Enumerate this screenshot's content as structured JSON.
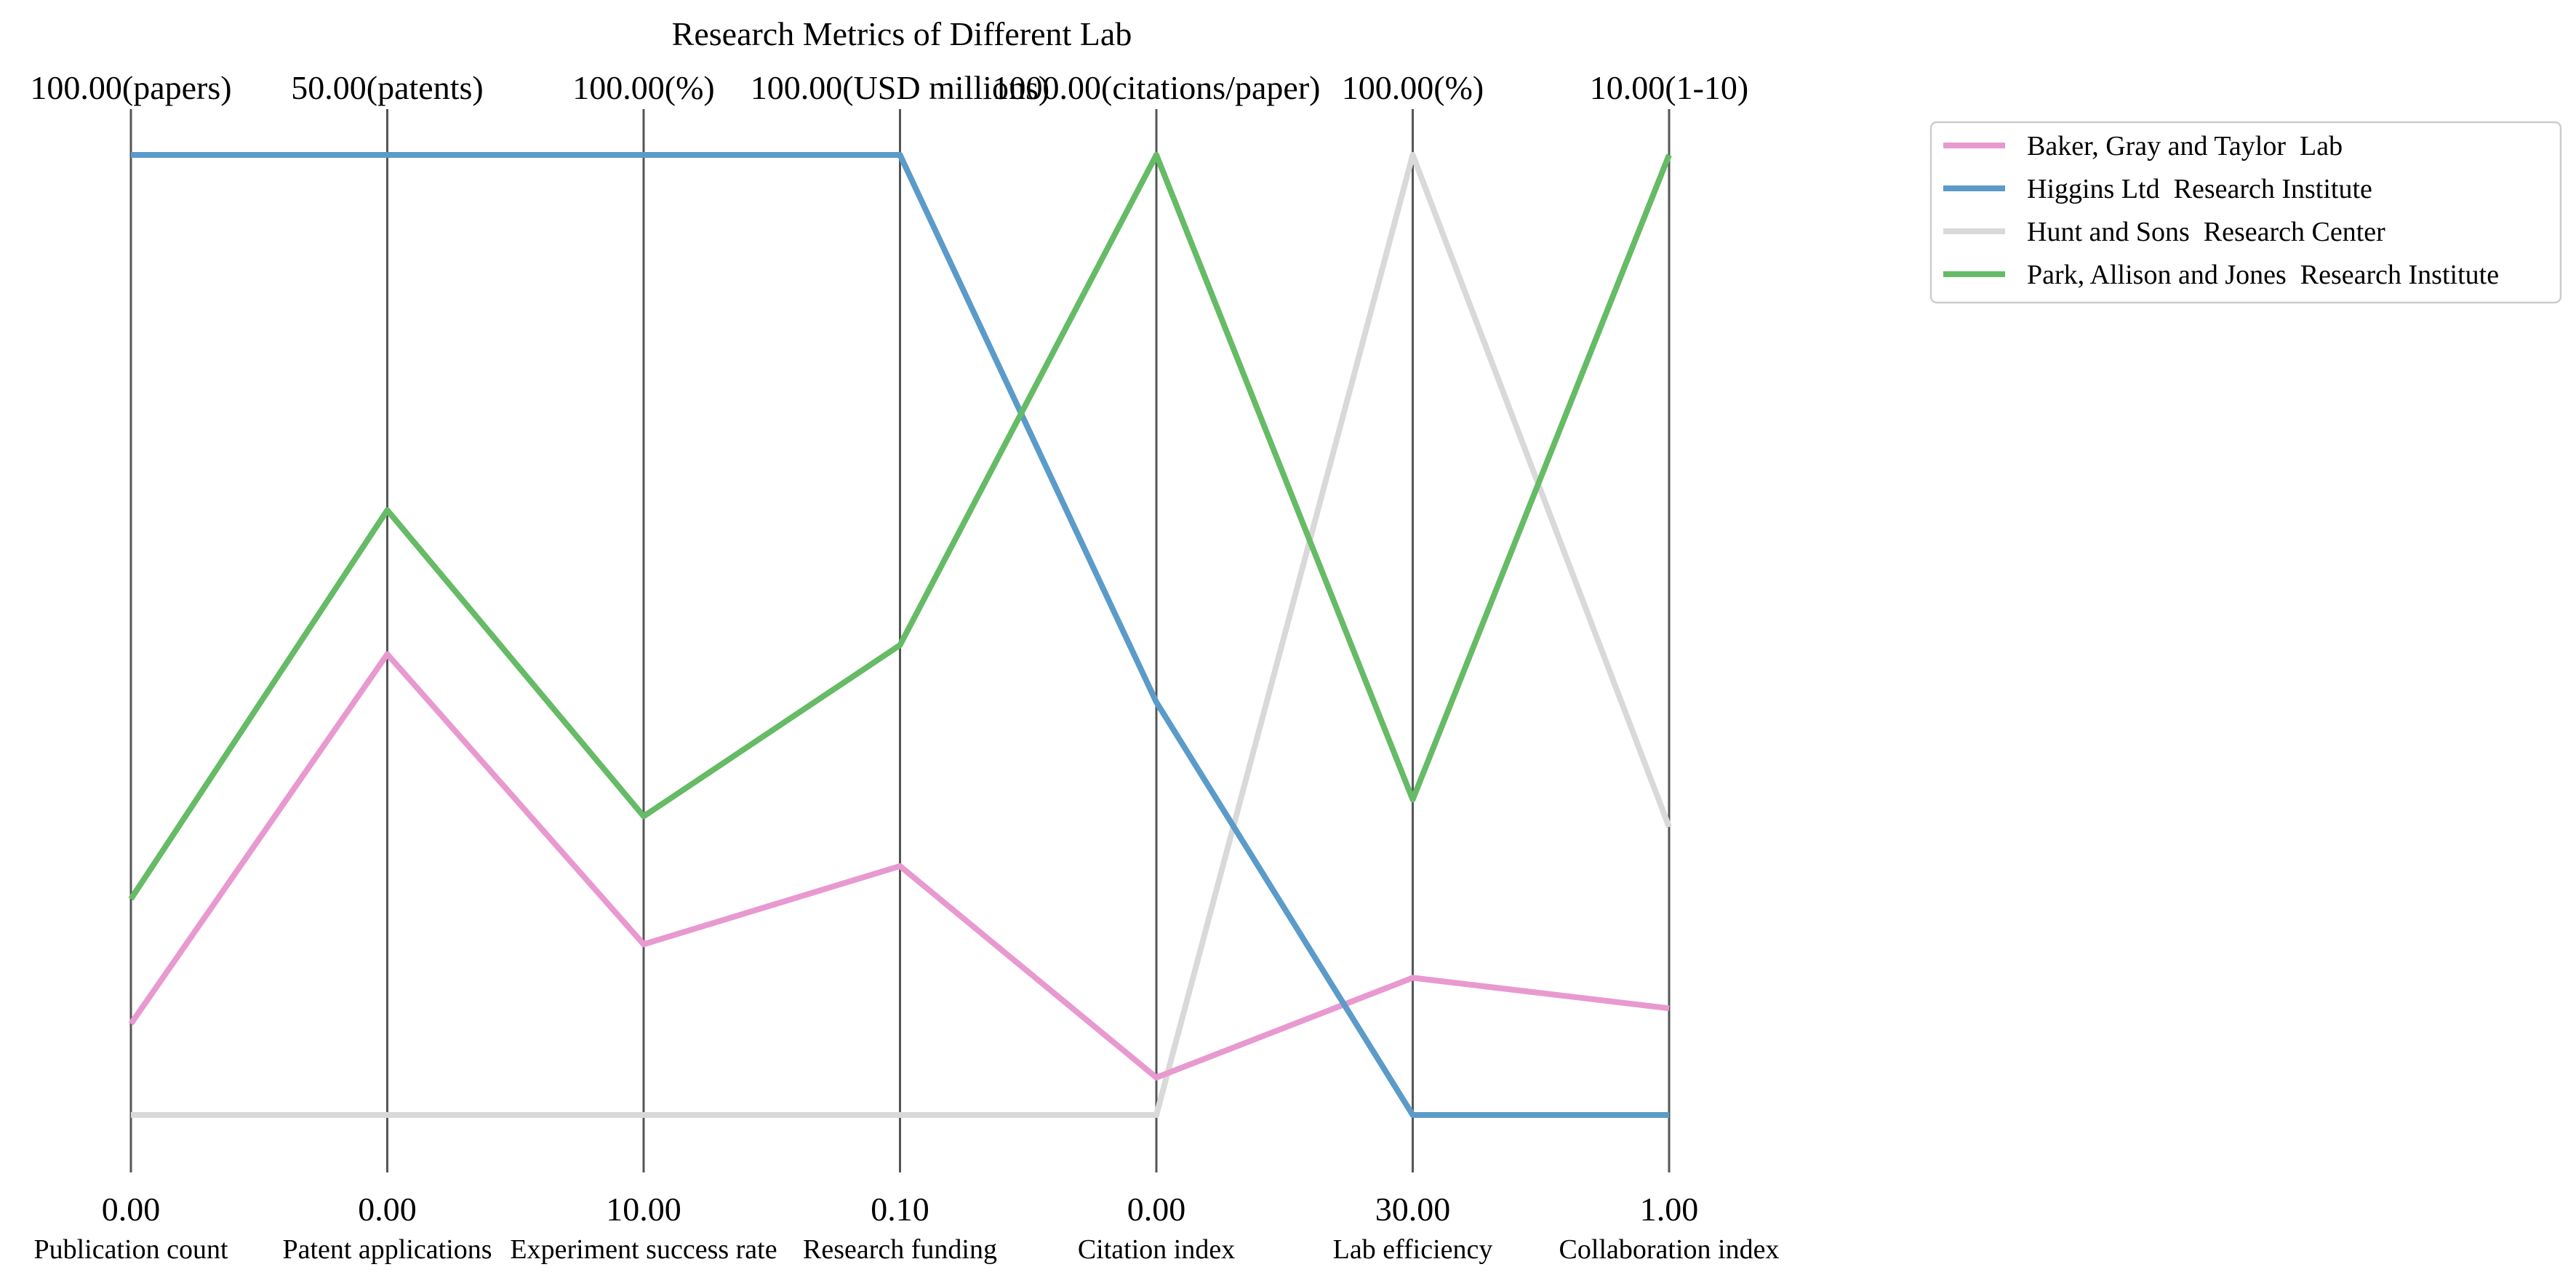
{
  "chart_data": {
    "type": "parallel-coordinates",
    "title": "Research Metrics of Different Lab",
    "axes": [
      {
        "label": "Publication count",
        "min": 0,
        "max": 100,
        "min_label": "0.00",
        "max_label": "100.00(papers)"
      },
      {
        "label": "Patent applications",
        "min": 0,
        "max": 50,
        "min_label": "0.00",
        "max_label": "50.00(patents)"
      },
      {
        "label": "Experiment success rate",
        "min": 10,
        "max": 100,
        "min_label": "10.00",
        "max_label": "100.00(%)"
      },
      {
        "label": "Research funding",
        "min": 0.1,
        "max": 100,
        "min_label": "0.10",
        "max_label": "100.00(USD millions)"
      },
      {
        "label": "Citation index",
        "min": 0,
        "max": 1000,
        "min_label": "0.00",
        "max_label": "1000.00(citations/paper)"
      },
      {
        "label": "Lab efficiency",
        "min": 30,
        "max": 100,
        "min_label": "30.00",
        "max_label": "100.00(%)"
      },
      {
        "label": "Collaboration index",
        "min": 1,
        "max": 10,
        "min_label": "1.00",
        "max_label": "10.00(1-10)"
      }
    ],
    "series": [
      {
        "name": "Baker, Gray and Taylor  Lab",
        "color": "#e899d0",
        "values": [
          9.5,
          24,
          26,
          26,
          39,
          40,
          2
        ]
      },
      {
        "name": "Higgins Ltd  Research Institute",
        "color": "#5b9bc9",
        "values": [
          100,
          50,
          100,
          100,
          430,
          30,
          1
        ]
      },
      {
        "name": "Hunt and Sons  Research Center",
        "color": "#d9d9d9",
        "values": [
          0,
          0,
          10,
          0.1,
          0,
          100,
          3.7
        ]
      },
      {
        "name": "Park, Allison and Jones  Research Institute",
        "color": "#66bb66",
        "values": [
          22.5,
          31.5,
          38,
          49,
          1000,
          53,
          10
        ]
      }
    ],
    "legend_position": "top-right",
    "grid": false
  }
}
